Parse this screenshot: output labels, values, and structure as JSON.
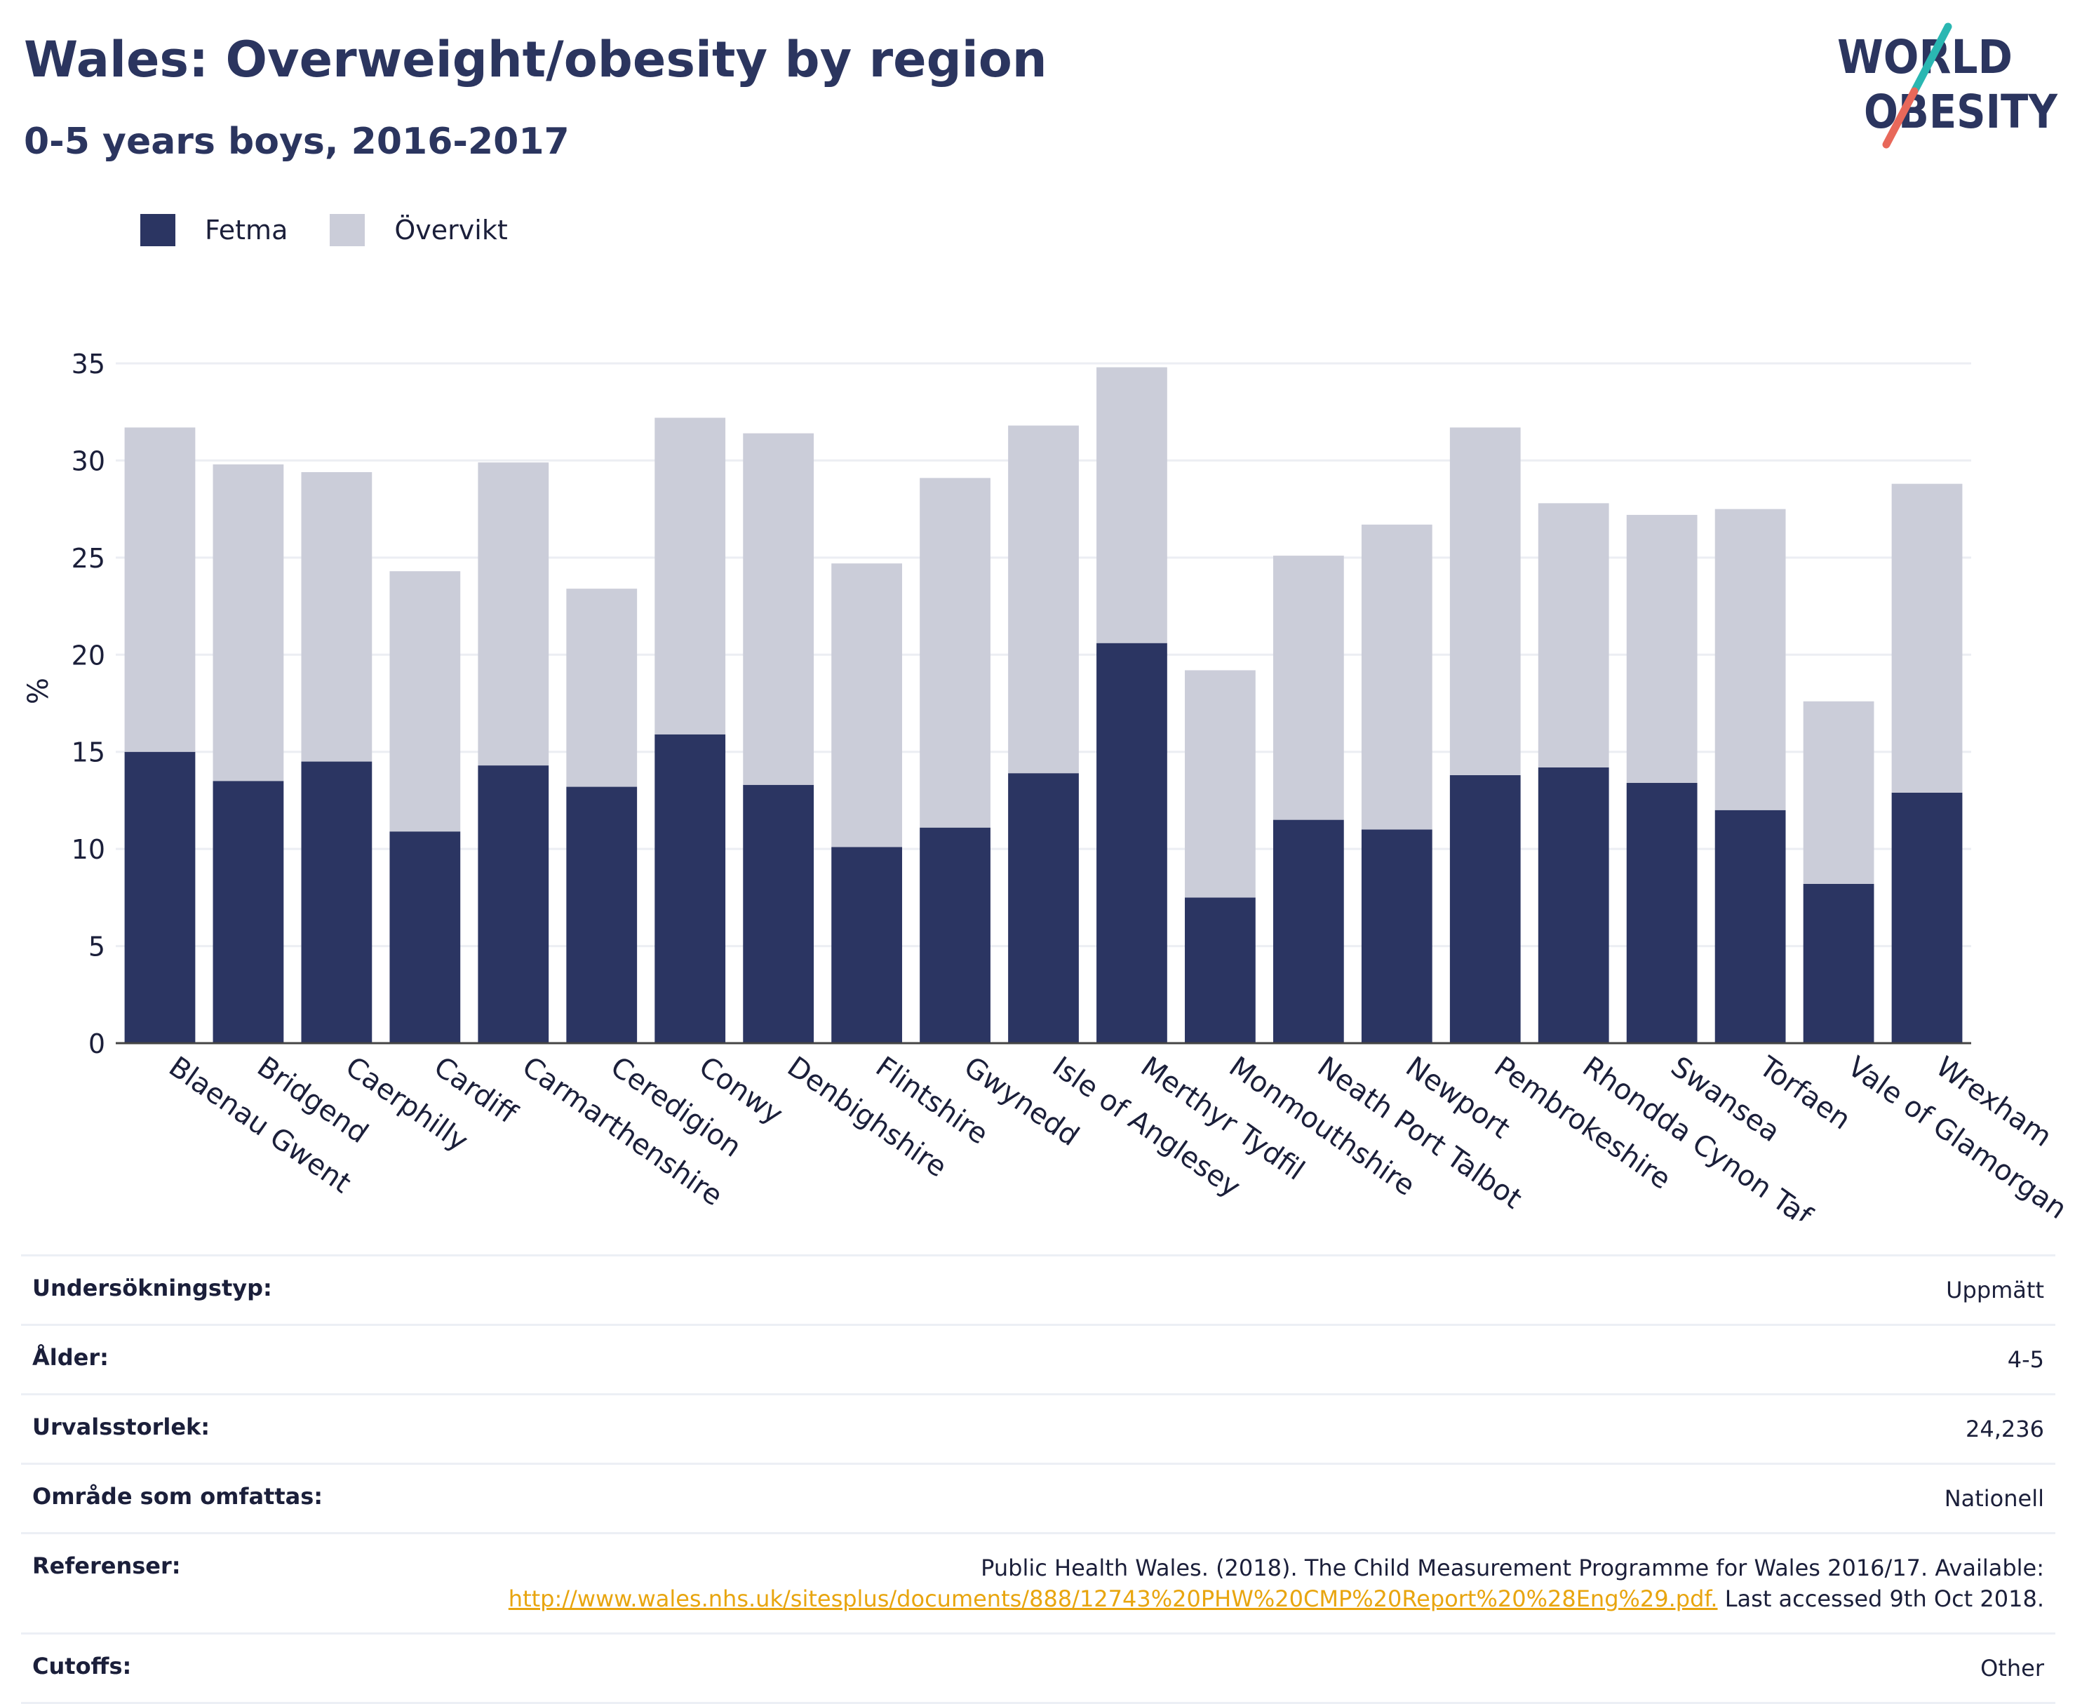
{
  "header": {
    "title": "Wales: Overweight/obesity by region",
    "subtitle": "0-5 years boys, 2016-2017"
  },
  "logo": {
    "line1": "WORLD",
    "line2": "OBESITY"
  },
  "colors": {
    "fetma": "#2b3562",
    "overvikt": "#cbcdd9",
    "accent_teal": "#2ab7b2",
    "accent_red": "#e8685a"
  },
  "chart_data": {
    "type": "bar",
    "stacked": true,
    "categories": [
      "Blaenau Gwent",
      "Bridgend",
      "Caerphilly",
      "Cardiff",
      "Carmarthenshire",
      "Ceredigion",
      "Conwy",
      "Denbighshire",
      "Flintshire",
      "Gwynedd",
      "Isle of Anglesey",
      "Merthyr Tydfil",
      "Monmouthshire",
      "Neath Port Talbot",
      "Newport",
      "Pembrokeshire",
      "Rhondda Cynon Taf",
      "Swansea",
      "Torfaen",
      "Vale of Glamorgan",
      "Wrexham"
    ],
    "series": [
      {
        "name": "Fetma",
        "values": [
          15.0,
          13.5,
          14.5,
          10.9,
          14.3,
          13.2,
          15.9,
          13.3,
          10.1,
          11.1,
          13.9,
          20.6,
          7.5,
          11.5,
          11.0,
          13.8,
          14.2,
          13.4,
          12.0,
          8.2,
          12.9
        ]
      },
      {
        "name": "Övervikt",
        "values": [
          16.7,
          16.3,
          14.9,
          13.4,
          15.6,
          10.2,
          16.3,
          18.1,
          14.6,
          18.0,
          17.9,
          14.2,
          11.7,
          13.6,
          15.7,
          17.9,
          13.6,
          13.8,
          15.5,
          9.4,
          15.9
        ]
      }
    ],
    "legend": [
      "Fetma",
      "Övervikt"
    ],
    "legend_position": "top-left",
    "ylabel": "%",
    "ylim": [
      0,
      35
    ],
    "yticks": [
      0,
      5,
      10,
      15,
      20,
      25,
      30,
      35
    ],
    "grid": true
  },
  "info": {
    "rows": [
      {
        "label": "Undersökningstyp:",
        "value": "Uppmätt"
      },
      {
        "label": "Ålder:",
        "value": "4-5"
      },
      {
        "label": "Urvalsstorlek:",
        "value": "24,236"
      },
      {
        "label": "Område som omfattas:",
        "value": "Nationell"
      }
    ],
    "reference": {
      "label": "Referenser:",
      "text_before": "Public Health Wales. (2018). The Child Measurement Programme for Wales 2016/17. Available:",
      "link": "http://www.wales.nhs.uk/sitesplus/documents/888/12743%20PHW%20CMP%20Report%20%28Eng%29.pdf.",
      "text_after": "Last accessed 9th Oct 2018."
    },
    "cutoffs": {
      "label": "Cutoffs:",
      "value": "Other"
    }
  }
}
